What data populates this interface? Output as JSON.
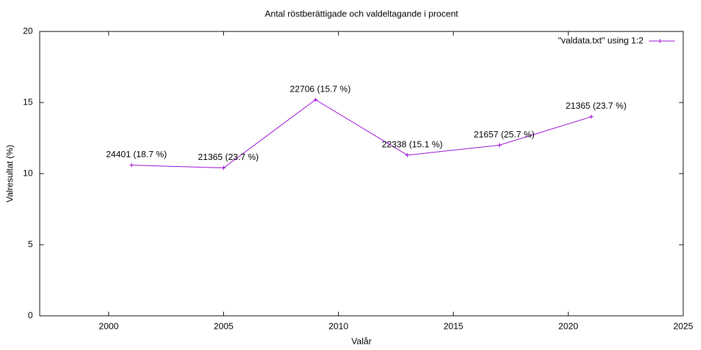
{
  "chart_data": {
    "type": "line",
    "title": "Antal röstberättigade och valdeltagande i procent",
    "xlabel": "Valår",
    "ylabel": "Valresultat (%)",
    "x": [
      2001,
      2005,
      2009,
      2013,
      2017,
      2021
    ],
    "series": [
      {
        "name": "\"valdata.txt\" using 1:2",
        "color": "#9400d3",
        "values": [
          10.6,
          10.4,
          15.2,
          11.3,
          12.0,
          14.0
        ]
      }
    ],
    "annotations": [
      "24401 (18.7 %)",
      "21365 (23.7 %)",
      "22706 (15.7 %)",
      "22338 (15.1 %)",
      "21657 (25.7 %)",
      "21365 (23.7 %)"
    ],
    "xlim": [
      1997,
      2025
    ],
    "xticks": [
      2000,
      2005,
      2010,
      2015,
      2020,
      2025
    ],
    "ylim": [
      0,
      20
    ],
    "yticks": [
      0,
      5,
      10,
      15,
      20
    ],
    "legend": "top-right"
  }
}
